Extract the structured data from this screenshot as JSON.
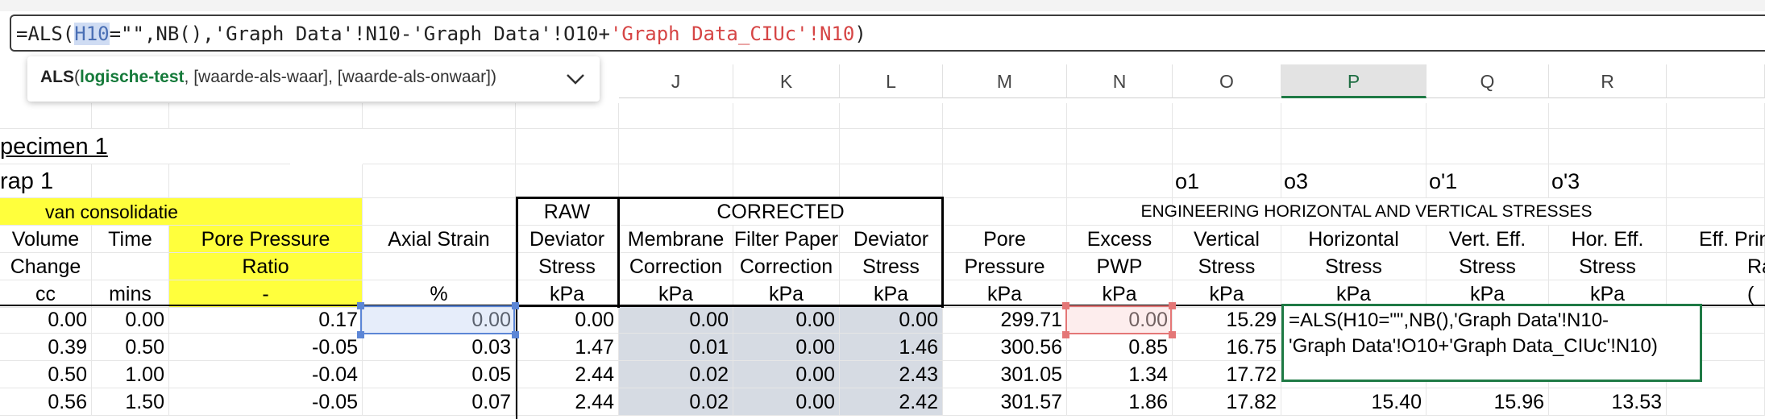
{
  "formula_bar": {
    "prefix": "=ALS(",
    "ref1": "H10",
    "middle": "=\"\",NB(),'Graph Data'!N10-'Graph Data'!O10+",
    "ref2": "'Graph Data_CIUc'!N10",
    "suffix": ")"
  },
  "tooltip": {
    "function": "ALS",
    "open": "(",
    "arg1": "logische-test",
    "rest": ", [waarde-als-waar], [waarde-als-onwaar])"
  },
  "columns": [
    "J",
    "K",
    "L",
    "M",
    "N",
    "O",
    "P",
    "Q",
    "R"
  ],
  "selected_column": "P",
  "labels": {
    "specimen": "pecimen 1",
    "trap": "rap 1",
    "o1": "o1",
    "o3": "o3",
    "o1p": "o'1",
    "o3p": "o'3",
    "van_consolidatie": "van consolidatie",
    "raw": "RAW",
    "corrected": "CORRECTED",
    "engineering": "ENGINEERING HORIZONTAL AND VERTICAL STRESSES"
  },
  "headers": {
    "volume": [
      "Volume",
      "Change",
      "cc"
    ],
    "time": [
      "Time",
      "",
      "mins"
    ],
    "ppr": [
      "Pore Pressure",
      "Ratio",
      "-"
    ],
    "axial": [
      "Axial Strain",
      "",
      "%"
    ],
    "raw_dev": [
      "Deviator",
      "Stress",
      "kPa"
    ],
    "membrane": [
      "Membrane",
      "Correction",
      "kPa"
    ],
    "filter": [
      "Filter Paper",
      "Correction",
      "kPa"
    ],
    "deviator": [
      "Deviator",
      "Stress",
      "kPa"
    ],
    "pore": [
      "Pore",
      "Pressure",
      "kPa"
    ],
    "excess": [
      "Excess",
      "PWP",
      "kPa"
    ],
    "vertical": [
      "Vertical",
      "Stress",
      "kPa"
    ],
    "horizontal": [
      "Horizontal",
      "Stress",
      "kPa"
    ],
    "vert_eff": [
      "Vert. Eff.",
      "Stress",
      "kPa"
    ],
    "hor_eff": [
      "Hor. Eff.",
      "Stress",
      "kPa"
    ],
    "eff_pri": [
      "Eff. Prin",
      "Ra",
      "("
    ]
  },
  "rows": [
    [
      "0.00",
      "0.00",
      "0.17",
      "0.00",
      "0.00",
      "0.00",
      "0.00",
      "0.00",
      "299.71",
      "0.00",
      "15.29",
      "",
      "",
      ""
    ],
    [
      "0.39",
      "0.50",
      "-0.05",
      "0.03",
      "1.47",
      "0.01",
      "0.00",
      "1.46",
      "300.56",
      "0.85",
      "16.75",
      "",
      "",
      ""
    ],
    [
      "0.50",
      "1.00",
      "-0.04",
      "0.05",
      "2.44",
      "0.02",
      "0.00",
      "2.43",
      "301.05",
      "1.34",
      "17.72",
      "",
      "",
      ""
    ],
    [
      "0.56",
      "1.50",
      "-0.05",
      "0.07",
      "2.44",
      "0.02",
      "0.00",
      "2.42",
      "301.57",
      "1.86",
      "17.82",
      "15.40",
      "15.96",
      "13.53"
    ]
  ],
  "edit_cell": {
    "line1": "=ALS(H10=\"\",NB(),'Graph Data'!N10-",
    "line2": "'Graph Data'!O10+'Graph Data_CIUc'!N10)"
  }
}
